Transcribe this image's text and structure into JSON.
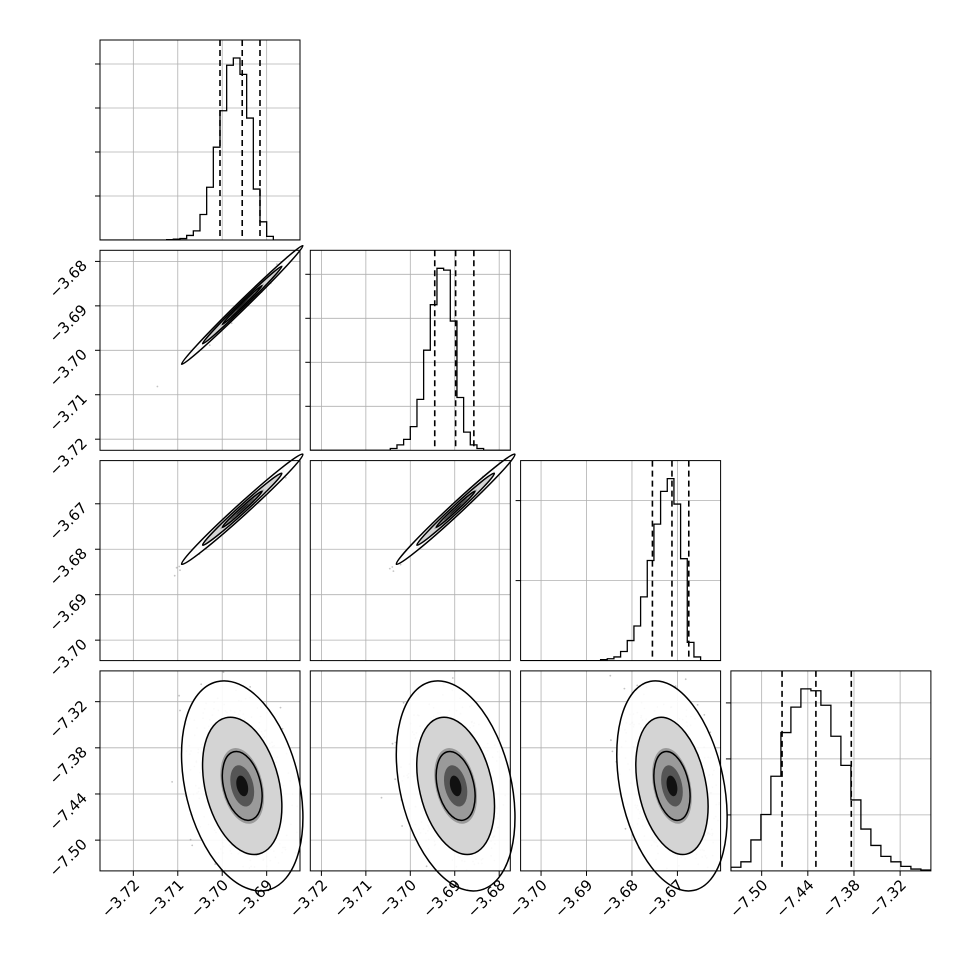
{
  "chart_data": {
    "type": "corner",
    "parameters": [
      {
        "range": [
          -3.7275,
          -3.6825
        ],
        "ticks": [
          -3.72,
          -3.71,
          -3.7,
          -3.69
        ],
        "tick_labels": [
          "−3.72",
          "−3.71",
          "−3.70",
          "−3.69"
        ],
        "quantiles": [
          -3.7005,
          -3.6955,
          -3.6915
        ],
        "histogram": [
          0,
          0,
          0,
          0,
          0,
          0,
          0,
          0,
          0,
          0,
          0.002,
          0.005,
          0.008,
          0.025,
          0.05,
          0.14,
          0.29,
          0.51,
          0.71,
          0.96,
          1.0,
          0.91,
          0.67,
          0.28,
          0.1,
          0.02,
          0,
          0,
          0,
          0
        ]
      },
      {
        "range": [
          -3.7225,
          -3.6775
        ],
        "ticks": [
          -3.72,
          -3.71,
          -3.7,
          -3.69,
          -3.68
        ],
        "tick_labels": [
          "−3.72",
          "−3.71",
          "−3.70",
          "−3.69",
          "−3.68"
        ],
        "quantiles": [
          -3.6945,
          -3.6898,
          -3.6857
        ],
        "histogram": [
          0,
          0,
          0,
          0,
          0,
          0,
          0,
          0,
          0,
          0,
          0,
          0,
          0.01,
          0.03,
          0.06,
          0.13,
          0.28,
          0.55,
          0.8,
          1.0,
          0.99,
          0.71,
          0.29,
          0.1,
          0.03,
          0.01,
          0,
          0,
          0,
          0
        ]
      },
      {
        "range": [
          -3.7045,
          -3.6605
        ],
        "ticks": [
          -3.7,
          -3.69,
          -3.68,
          -3.67
        ],
        "tick_labels": [
          "−3.70",
          "−3.69",
          "−3.68",
          "−3.67"
        ],
        "quantiles": [
          -3.6755,
          -3.6712,
          -3.6675
        ],
        "histogram": [
          0,
          0,
          0,
          0,
          0,
          0,
          0,
          0,
          0,
          0,
          0,
          0,
          0.005,
          0.01,
          0.02,
          0.05,
          0.11,
          0.19,
          0.35,
          0.55,
          0.75,
          0.93,
          1.0,
          0.86,
          0.56,
          0.1,
          0.02,
          0,
          0,
          0
        ]
      },
      {
        "range": [
          -7.54,
          -7.28
        ],
        "ticks": [
          -7.5,
          -7.44,
          -7.38,
          -7.32
        ],
        "tick_labels": [
          "−7.50",
          "−7.44",
          "−7.38",
          "−7.32"
        ],
        "quantiles": [
          -7.4735,
          -7.4295,
          -7.3835
        ],
        "histogram": [
          0.02,
          0.05,
          0.17,
          0.31,
          0.52,
          0.76,
          0.9,
          1.0,
          0.99,
          0.91,
          0.74,
          0.58,
          0.39,
          0.23,
          0.14,
          0.08,
          0.05,
          0.025,
          0.01,
          0.005
        ]
      }
    ],
    "correlations": [
      {
        "pair": [
          1,
          0
        ],
        "rho": 0.995
      },
      {
        "pair": [
          2,
          0
        ],
        "rho": 0.99
      },
      {
        "pair": [
          2,
          1
        ],
        "rho": 0.99
      },
      {
        "pair": [
          3,
          0
        ],
        "rho": -0.3
      },
      {
        "pair": [
          3,
          1
        ],
        "rho": -0.3
      },
      {
        "pair": [
          3,
          2
        ],
        "rho": -0.3
      }
    ],
    "contour_levels": [
      0.39,
      0.86,
      0.99
    ],
    "grid": true,
    "colors": {
      "line": "#000000",
      "grid": "#b0b0b0",
      "points": "#555555",
      "fill": "#000000"
    }
  }
}
